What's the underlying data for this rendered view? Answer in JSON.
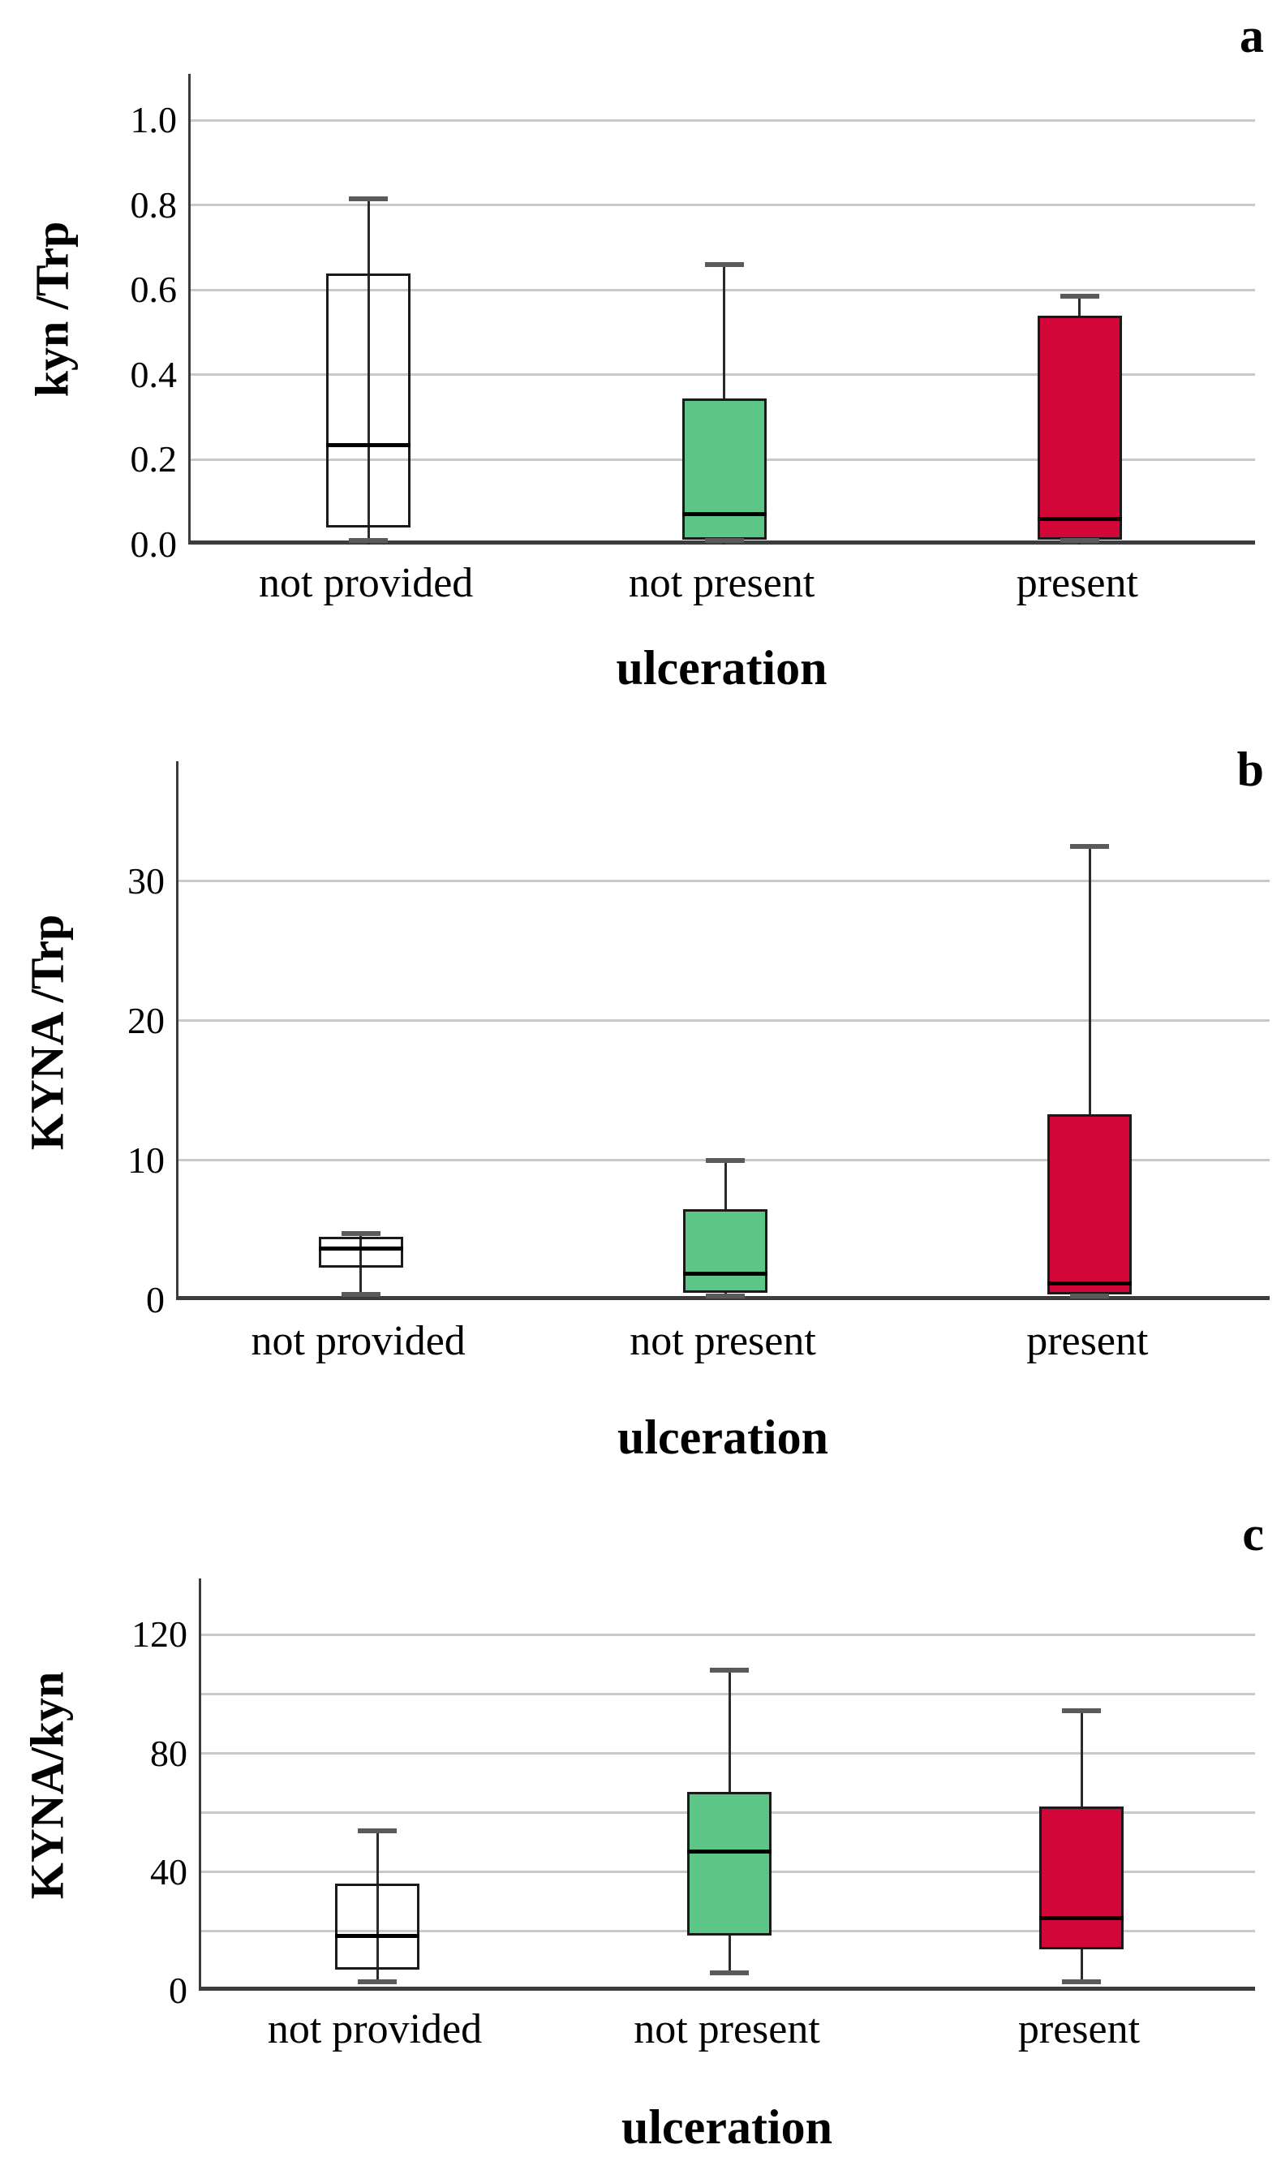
{
  "figure": {
    "x_axis_title": "ulceration",
    "categories": [
      "not provided",
      "not present",
      "present"
    ],
    "colors": {
      "box_not_provided_fill": "transparent",
      "box_not_present_fill": "#5cc687",
      "box_present_fill": "#d20638",
      "box_border": "#1a1a1a",
      "median_line": "#000000",
      "whisker_line": "#2b2b2b",
      "whisker_cap": "#5a5a5a",
      "gridline": "#c9c9c9",
      "axis_line": "#3c3c3c",
      "text": "#000000"
    }
  },
  "chart_data": [
    {
      "type": "box",
      "panel_letter": "a",
      "ylabel": "kyn /Trp",
      "xlabel": "ulceration",
      "categories": [
        "not provided",
        "not present",
        "present"
      ],
      "ylim": [
        0,
        1.11
      ],
      "grid": true,
      "gridlines": [
        0.2,
        0.4,
        0.6,
        0.8,
        1.0
      ],
      "yticks": [
        {
          "value": 0.0,
          "label": "0.0"
        },
        {
          "value": 0.2,
          "label": "0.2"
        },
        {
          "value": 0.4,
          "label": "0.4"
        },
        {
          "value": 0.6,
          "label": "0.6"
        },
        {
          "value": 0.8,
          "label": "0.8"
        },
        {
          "value": 1.0,
          "label": "1.0"
        }
      ],
      "series": [
        {
          "name": "not provided",
          "fill": "transparent",
          "min": 0.0,
          "q1": 0.04,
          "median": 0.235,
          "q3": 0.64,
          "max": 0.815
        },
        {
          "name": "not present",
          "fill": "#5cc687",
          "min": 0.0,
          "q1": 0.012,
          "median": 0.072,
          "q3": 0.345,
          "max": 0.66
        },
        {
          "name": "present",
          "fill": "#d20638",
          "min": 0.0,
          "q1": 0.012,
          "median": 0.06,
          "q3": 0.54,
          "max": 0.585
        }
      ]
    },
    {
      "type": "box",
      "panel_letter": "b",
      "ylabel": "KYNA /Trp",
      "xlabel": "ulceration",
      "categories": [
        "not provided",
        "not present",
        "present"
      ],
      "ylim": [
        0,
        38.6
      ],
      "grid": true,
      "gridlines": [
        10,
        20,
        30
      ],
      "yticks": [
        {
          "value": 0,
          "label": "0"
        },
        {
          "value": 10,
          "label": "10"
        },
        {
          "value": 20,
          "label": "20"
        },
        {
          "value": 30,
          "label": "30"
        }
      ],
      "series": [
        {
          "name": "not provided",
          "fill": "transparent",
          "min": 0.4,
          "q1": 2.3,
          "median": 3.7,
          "q3": 4.55,
          "max": 4.75
        },
        {
          "name": "not present",
          "fill": "#5cc687",
          "min": 0.2,
          "q1": 0.5,
          "median": 1.9,
          "q3": 6.5,
          "max": 10.0
        },
        {
          "name": "present",
          "fill": "#d20638",
          "min": 0.1,
          "q1": 0.4,
          "median": 1.2,
          "q3": 13.3,
          "max": 32.5
        }
      ]
    },
    {
      "type": "box",
      "panel_letter": "c",
      "ylabel": "KYNA/kyn",
      "xlabel": "ulceration",
      "categories": [
        "not provided",
        "not present",
        "present"
      ],
      "ylim": [
        0,
        139
      ],
      "grid": true,
      "gridlines": [
        20,
        40,
        60,
        80,
        100,
        120
      ],
      "yticks": [
        {
          "value": 0,
          "label": "0"
        },
        {
          "value": 40,
          "label": "40"
        },
        {
          "value": 80,
          "label": "80"
        },
        {
          "value": 120,
          "label": "120"
        }
      ],
      "series": [
        {
          "name": "not provided",
          "fill": "transparent",
          "min": 3,
          "q1": 7,
          "median": 18.5,
          "q3": 36,
          "max": 54
        },
        {
          "name": "not present",
          "fill": "#5cc687",
          "min": 6,
          "q1": 18.5,
          "median": 47,
          "q3": 67,
          "max": 108
        },
        {
          "name": "present",
          "fill": "#d20638",
          "min": 3,
          "q1": 14,
          "median": 24.5,
          "q3": 62,
          "max": 94.5
        }
      ]
    }
  ]
}
